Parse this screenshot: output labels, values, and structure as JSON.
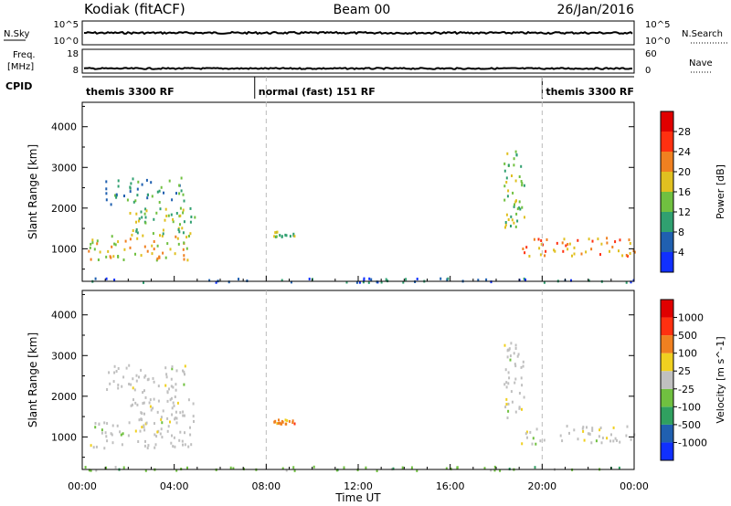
{
  "header": {
    "station": "Kodiak (fitACF)",
    "beam": "Beam 00",
    "date": "26/Jan/2016"
  },
  "panels": {
    "nsky": {
      "label": "N.Sky",
      "ytick_top": "10^5",
      "ytick_bottom": "10^0",
      "right_label": "N.Search",
      "right_ytick_top": "10^5",
      "right_ytick_bottom": "10^0",
      "value": 0.6
    },
    "freq": {
      "label_line1": "Freq.",
      "label_line2": "[MHz]",
      "ytick_top": "18",
      "ytick_bottom": "8",
      "right_label": "Nave",
      "right_ytick_top": "60",
      "right_ytick_bottom": "0",
      "value": 0.05
    },
    "cpid": {
      "label": "CPID",
      "segments": [
        {
          "text": "themis 3300 RF",
          "start": 0,
          "end": 7.5
        },
        {
          "text": "normal (fast) 151 RF",
          "start": 7.5,
          "end": 20
        },
        {
          "text": "themis 3300 RF",
          "start": 20,
          "end": 24
        }
      ]
    }
  },
  "chart_data": [
    {
      "type": "heatmap",
      "ylabel": "Slant Range [km]",
      "xlim": [
        0,
        24
      ],
      "ylim": [
        200,
        4600
      ],
      "ytick_labels": [
        "1000",
        "2000",
        "3000",
        "4000"
      ],
      "yticks": [
        1000,
        2000,
        3000,
        4000
      ],
      "colorbar": {
        "label": "Power [dB]",
        "ticks": [
          "4",
          "8",
          "12",
          "16",
          "20",
          "24",
          "28"
        ],
        "colors": [
          "#1030ff",
          "#2060b0",
          "#30a070",
          "#70c040",
          "#e0c020",
          "#f08020",
          "#ff3010",
          "#e00000"
        ]
      },
      "vlines": [
        8,
        20
      ],
      "regions": [
        {
          "t": [
            0.2,
            4.7
          ],
          "r": [
            750,
            1400
          ],
          "level": 4
        },
        {
          "t": [
            2.0,
            4.9
          ],
          "r": [
            1350,
            2050
          ],
          "level": 3
        },
        {
          "t": [
            1.0,
            4.5
          ],
          "r": [
            2100,
            2800
          ],
          "level": 2
        },
        {
          "t": [
            18.3,
            19.2
          ],
          "r": [
            1500,
            3500
          ],
          "level": 3
        },
        {
          "t": [
            19.0,
            24.0
          ],
          "r": [
            850,
            1300
          ],
          "level": 5
        },
        {
          "t": [
            8.3,
            9.2
          ],
          "r": [
            1300,
            1450
          ],
          "level": 3
        },
        {
          "t": [
            0.0,
            24.0
          ],
          "r": [
            200,
            300
          ],
          "level": 1
        }
      ]
    },
    {
      "type": "heatmap",
      "ylabel": "Slant Range [km]",
      "xlabel": "Time UT",
      "xlim": [
        0,
        24
      ],
      "ylim": [
        200,
        4600
      ],
      "ytick_labels": [
        "1000",
        "2000",
        "3000",
        "4000"
      ],
      "yticks": [
        1000,
        2000,
        3000,
        4000
      ],
      "xtick_labels": [
        "00:00",
        "04:00",
        "08:00",
        "12:00",
        "16:00",
        "20:00",
        "00:00"
      ],
      "xticks": [
        0,
        4,
        8,
        12,
        16,
        20,
        24
      ],
      "colorbar": {
        "label": "Velocity [m s^-1]",
        "ticks": [
          "1000",
          "500",
          "100",
          "25",
          "-25",
          "-100",
          "-500",
          "-1000"
        ],
        "colors": [
          "#1030ff",
          "#2060b0",
          "#30a060",
          "#70c040",
          "#c0c0c0",
          "#f0d020",
          "#f08020",
          "#ff3010",
          "#e00000"
        ]
      },
      "vlines": [
        8,
        20
      ],
      "regions": [
        {
          "t": [
            0.2,
            4.7
          ],
          "r": [
            750,
            1400
          ],
          "level": 4
        },
        {
          "t": [
            2.0,
            4.9
          ],
          "r": [
            1350,
            2050
          ],
          "level": 4
        },
        {
          "t": [
            1.0,
            4.5
          ],
          "r": [
            2100,
            2800
          ],
          "level": 4
        },
        {
          "t": [
            18.3,
            19.2
          ],
          "r": [
            1500,
            3500
          ],
          "level": 4
        },
        {
          "t": [
            19.0,
            24.0
          ],
          "r": [
            850,
            1300
          ],
          "level": 4
        },
        {
          "t": [
            8.3,
            9.2
          ],
          "r": [
            1300,
            1450
          ],
          "level": 6
        },
        {
          "t": [
            0.0,
            24.0
          ],
          "r": [
            200,
            300
          ],
          "level": 3
        }
      ]
    }
  ]
}
